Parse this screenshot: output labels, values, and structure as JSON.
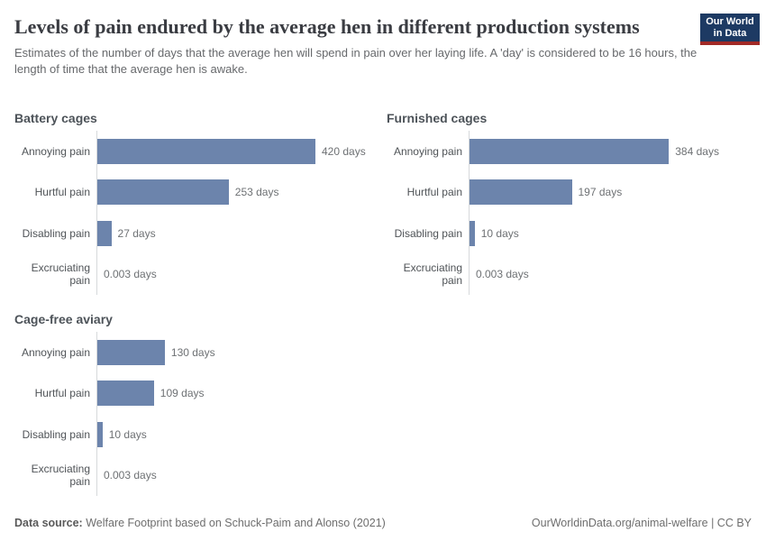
{
  "header": {
    "title": "Levels of pain endured by the average hen in different production systems",
    "subtitle": "Estimates of the number of days that the average hen will spend in pain over her laying life. A 'day' is considered to be 16 hours, the length of time that the average hen is awake.",
    "logo": {
      "line1": "Our World",
      "line2": "in Data"
    }
  },
  "chart_data": {
    "type": "bar",
    "orientation": "horizontal",
    "unit": "days",
    "grid": false,
    "legend": "none",
    "xlim": [
      0,
      420
    ],
    "bar_color": "#6c84ac",
    "categories": [
      "Annoying pain",
      "Hurtful pain",
      "Disabling pain",
      "Excruciating pain"
    ],
    "facets": [
      {
        "title": "Battery cages",
        "values": [
          420,
          253,
          27,
          0.003
        ],
        "value_labels": [
          "420 days",
          "253 days",
          "27 days",
          "0.003 days"
        ]
      },
      {
        "title": "Furnished cages",
        "values": [
          384,
          197,
          10,
          0.003
        ],
        "value_labels": [
          "384 days",
          "197 days",
          "10 days",
          "0.003 days"
        ]
      },
      {
        "title": "Cage-free aviary",
        "values": [
          130,
          109,
          10,
          0.003
        ],
        "value_labels": [
          "130 days",
          "109 days",
          "10 days",
          "0.003 days"
        ]
      }
    ]
  },
  "footer": {
    "data_source_label": "Data source:",
    "data_source_text": "Welfare Footprint based on Schuck-Paim and Alonso (2021)",
    "url": "OurWorldinData.org/animal-welfare",
    "separator": "|",
    "license": "CC BY"
  },
  "colors": {
    "bar": "#6c84ac",
    "logo_navy": "#1d3a63",
    "logo_red": "#a22a27",
    "axis": "#d6d9db"
  }
}
